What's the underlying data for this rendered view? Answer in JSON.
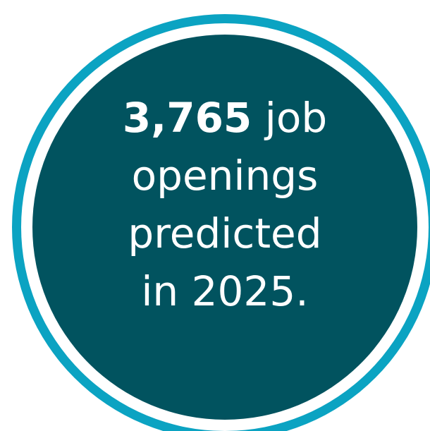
{
  "badge": {
    "number": "3,765",
    "line1_rest": " job",
    "line2": "openings",
    "line3": "predicted",
    "line4": "in 2025.",
    "colors": {
      "outer_ring": "#0ba3c2",
      "gap": "#ffffff",
      "inner_fill": "#01535f",
      "text": "#ffffff"
    }
  }
}
